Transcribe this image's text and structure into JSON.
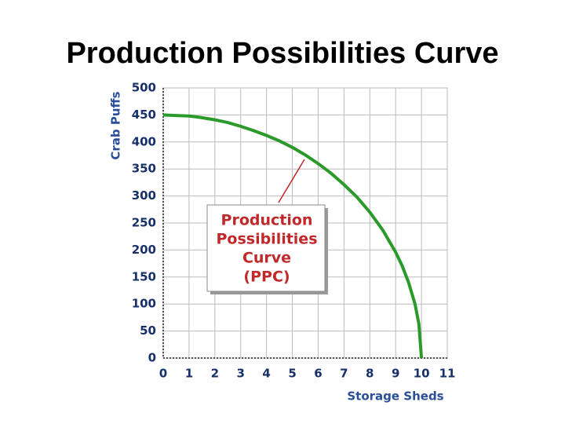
{
  "chart_data": {
    "type": "line",
    "title": "Production Possibilities Curve",
    "x_label": "Storage Sheds",
    "y_label": "Crab Puffs",
    "annotation": [
      "Production",
      "Possibilities",
      "Curve",
      "(PPC)"
    ],
    "x": [
      0,
      0.5,
      1,
      1.5,
      2,
      2.5,
      3,
      3.5,
      4,
      4.5,
      5,
      5.5,
      6,
      6.5,
      7,
      7.5,
      8,
      8.5,
      9,
      9.25,
      9.5,
      9.75,
      9.9,
      10
    ],
    "series": [
      {
        "name": "PPC",
        "color": "#2a9a2a",
        "values": [
          450,
          449,
          448,
          445,
          441,
          436,
          429,
          421,
          412,
          402,
          390,
          376,
          360,
          342,
          321,
          298,
          270,
          237,
          196,
          171,
          140,
          100,
          63,
          0
        ]
      }
    ],
    "xlim": [
      0,
      11
    ],
    "xticks": [
      0,
      1,
      2,
      3,
      4,
      5,
      6,
      7,
      8,
      9,
      10,
      11
    ],
    "ylim": [
      0,
      500
    ],
    "yticks": [
      0,
      50,
      100,
      150,
      200,
      250,
      300,
      350,
      400,
      450,
      500
    ],
    "grid": true
  }
}
